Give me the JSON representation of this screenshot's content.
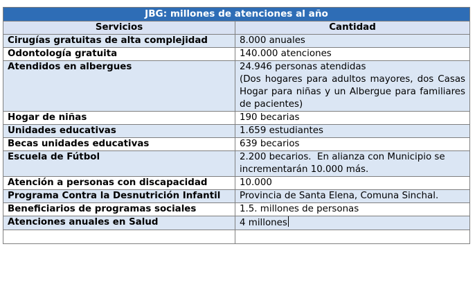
{
  "table": {
    "title": "JBG: millones de atenciones al año",
    "headers": {
      "service": "Servicios",
      "quantity": "Cantidad"
    },
    "rows": [
      {
        "service": "Cirugías gratuitas de alta complejidad",
        "quantity": [
          "8.000 anuales"
        ]
      },
      {
        "service": "Odontología gratuita",
        "quantity": [
          "140.000 atenciones"
        ]
      },
      {
        "service": "Atendidos en albergues",
        "quantity": [
          "24.946 personas atendidas",
          "(Dos hogares para adultos mayores, dos Casas Hogar para niñas y un Albergue para familiares de pacientes)"
        ]
      },
      {
        "service": "Hogar de niñas",
        "quantity": [
          "190 becarias"
        ]
      },
      {
        "service": "Unidades educativas",
        "quantity": [
          "1.659 estudiantes"
        ]
      },
      {
        "service": "Becas unidades educativas",
        "quantity": [
          "639 becarios"
        ]
      },
      {
        "service": "Escuela de Fútbol",
        "quantity": [
          "2.200 becarios.  En alianza con Municipio se incrementarán 10.000 más."
        ]
      },
      {
        "service": "Atención a personas con discapacidad",
        "quantity": [
          "10.000"
        ]
      },
      {
        "service": "Programa Contra la Desnutrición Infantil",
        "quantity": [
          "Provincia de Santa Elena, Comuna Sinchal."
        ]
      },
      {
        "service": "Beneficiarios de programas sociales",
        "quantity": [
          "1.5. millones de personas"
        ]
      },
      {
        "service": "Atenciones anuales en Salud",
        "quantity": [
          "4 millones"
        ]
      },
      {
        "service": "",
        "quantity": [
          ""
        ]
      }
    ]
  }
}
